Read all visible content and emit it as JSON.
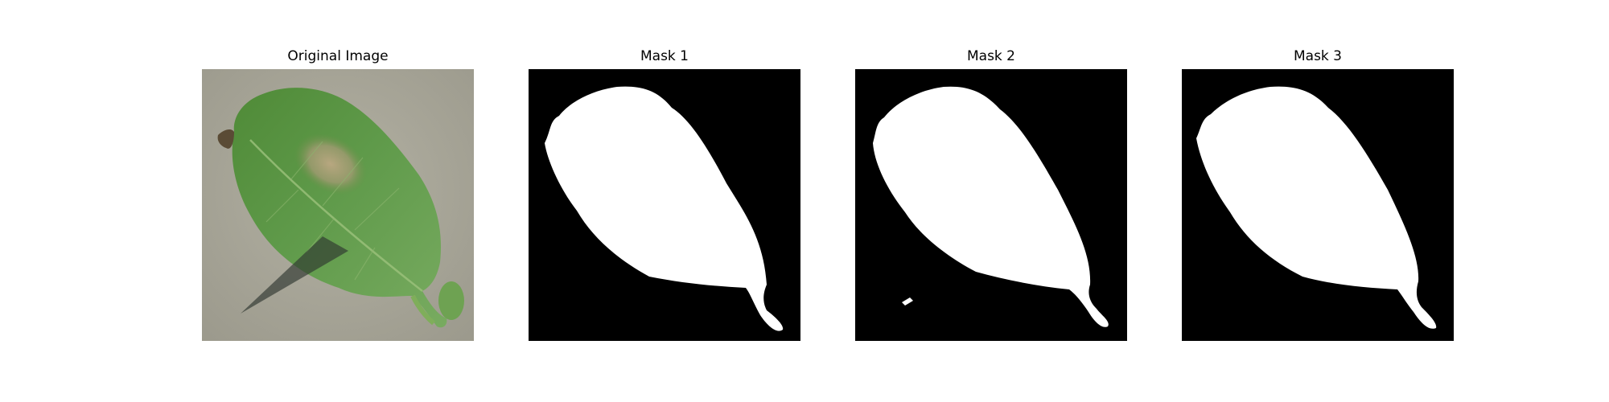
{
  "panels": [
    {
      "title": "Original Image"
    },
    {
      "title": "Mask 1"
    },
    {
      "title": "Mask 2"
    },
    {
      "title": "Mask 3"
    }
  ],
  "colors": {
    "background": "#ffffff",
    "mask_background": "#000000",
    "mask_foreground": "#ffffff",
    "leaf_green": "#5f9a4a",
    "surface_gray": "#a8a698"
  }
}
